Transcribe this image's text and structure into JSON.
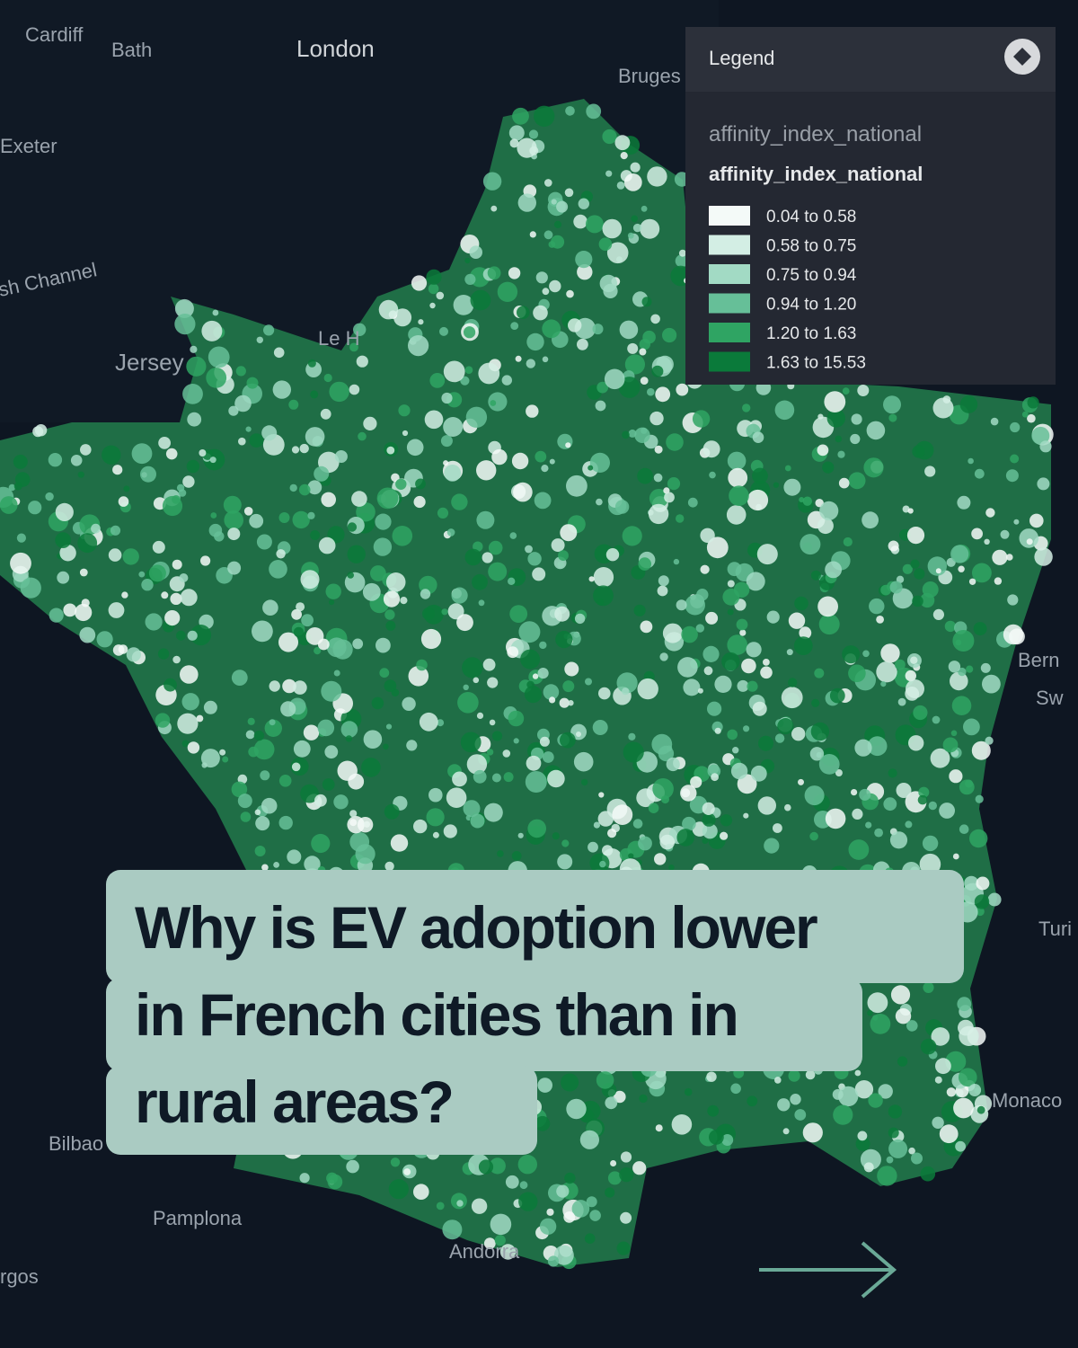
{
  "map": {
    "place_labels": [
      "Cardiff",
      "Bath",
      "London",
      "Bruges",
      "Exeter",
      "sh Channel",
      "Jersey",
      "Le H",
      "Bern",
      "Sw",
      "Turi",
      "Monaco",
      "Bilbao",
      "Pamplona",
      "Andorra",
      "rgos"
    ]
  },
  "legend": {
    "title": "Legend",
    "layer_name": "affinity_index_national",
    "field_name": "affinity_index_national",
    "items": [
      {
        "label": "0.04 to 0.58",
        "color": "#f4faf8"
      },
      {
        "label": "0.58 to 0.75",
        "color": "#d3eee4"
      },
      {
        "label": "0.75 to 0.94",
        "color": "#a2dac4"
      },
      {
        "label": "0.94 to 1.20",
        "color": "#66bf98"
      },
      {
        "label": "1.20 to 1.63",
        "color": "#2fa463"
      },
      {
        "label": "1.63 to 15.53",
        "color": "#0a7a3a"
      }
    ]
  },
  "headline": {
    "lines": [
      "Why is EV adoption lower",
      "in French cities than in",
      "rural areas?"
    ]
  }
}
